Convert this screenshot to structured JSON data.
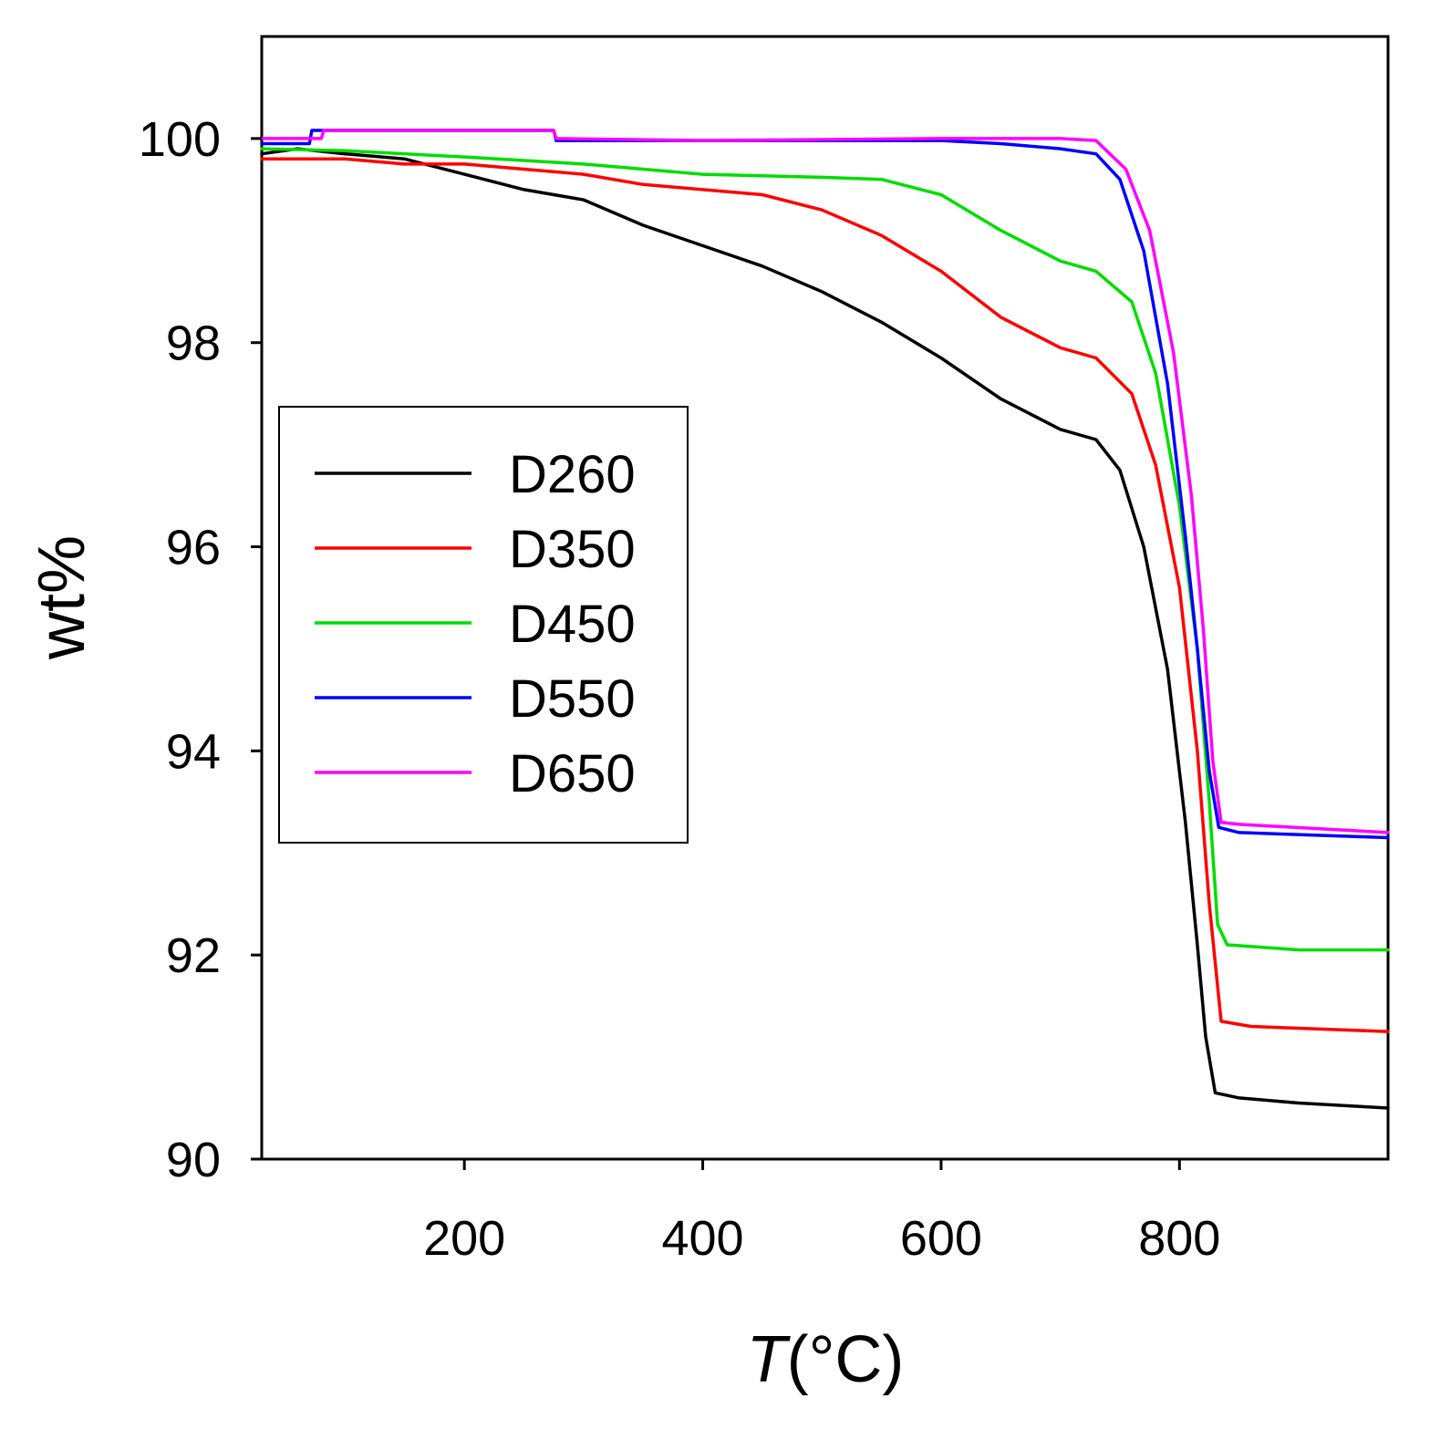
{
  "chart_data": {
    "type": "line",
    "title": "",
    "xlabel_italic": "T",
    "xlabel_unit": "(°C)",
    "ylabel": "wt%",
    "xlim": [
      30,
      975
    ],
    "ylim": [
      90,
      101
    ],
    "grid": false,
    "legend_position": "center-left",
    "x_ticks": [
      200,
      400,
      600,
      800
    ],
    "y_ticks": [
      90,
      92,
      94,
      96,
      98,
      100
    ],
    "series": [
      {
        "name": "D260",
        "color": "#000000",
        "points": [
          [
            30,
            99.85
          ],
          [
            60,
            99.9
          ],
          [
            100,
            99.85
          ],
          [
            150,
            99.8
          ],
          [
            200,
            99.65
          ],
          [
            250,
            99.5
          ],
          [
            300,
            99.4
          ],
          [
            350,
            99.15
          ],
          [
            400,
            98.95
          ],
          [
            450,
            98.75
          ],
          [
            500,
            98.5
          ],
          [
            550,
            98.2
          ],
          [
            600,
            97.85
          ],
          [
            650,
            97.45
          ],
          [
            700,
            97.15
          ],
          [
            730,
            97.05
          ],
          [
            750,
            96.75
          ],
          [
            770,
            96.0
          ],
          [
            790,
            94.8
          ],
          [
            805,
            93.3
          ],
          [
            815,
            92.1
          ],
          [
            822,
            91.2
          ],
          [
            830,
            90.65
          ],
          [
            850,
            90.6
          ],
          [
            900,
            90.55
          ],
          [
            975,
            90.5
          ]
        ]
      },
      {
        "name": "D350",
        "color": "#ff0000",
        "points": [
          [
            30,
            99.8
          ],
          [
            100,
            99.8
          ],
          [
            150,
            99.75
          ],
          [
            200,
            99.75
          ],
          [
            250,
            99.7
          ],
          [
            300,
            99.65
          ],
          [
            350,
            99.55
          ],
          [
            400,
            99.5
          ],
          [
            450,
            99.45
          ],
          [
            500,
            99.3
          ],
          [
            550,
            99.05
          ],
          [
            600,
            98.7
          ],
          [
            650,
            98.25
          ],
          [
            700,
            97.95
          ],
          [
            730,
            97.85
          ],
          [
            760,
            97.5
          ],
          [
            780,
            96.8
          ],
          [
            800,
            95.6
          ],
          [
            815,
            94.0
          ],
          [
            825,
            92.5
          ],
          [
            835,
            91.35
          ],
          [
            860,
            91.3
          ],
          [
            975,
            91.25
          ]
        ]
      },
      {
        "name": "D450",
        "color": "#00dd00",
        "points": [
          [
            30,
            99.9
          ],
          [
            100,
            99.88
          ],
          [
            200,
            99.82
          ],
          [
            300,
            99.75
          ],
          [
            400,
            99.65
          ],
          [
            500,
            99.62
          ],
          [
            550,
            99.6
          ],
          [
            600,
            99.45
          ],
          [
            650,
            99.1
          ],
          [
            700,
            98.8
          ],
          [
            730,
            98.7
          ],
          [
            760,
            98.4
          ],
          [
            780,
            97.7
          ],
          [
            800,
            96.4
          ],
          [
            815,
            95.0
          ],
          [
            825,
            93.5
          ],
          [
            832,
            92.3
          ],
          [
            840,
            92.1
          ],
          [
            900,
            92.05
          ],
          [
            975,
            92.05
          ]
        ]
      },
      {
        "name": "D550",
        "color": "#0000ff",
        "points": [
          [
            30,
            99.95
          ],
          [
            70,
            99.95
          ],
          [
            72,
            100.08
          ],
          [
            275,
            100.08
          ],
          [
            277,
            99.98
          ],
          [
            400,
            99.98
          ],
          [
            600,
            99.98
          ],
          [
            650,
            99.95
          ],
          [
            700,
            99.9
          ],
          [
            730,
            99.85
          ],
          [
            750,
            99.6
          ],
          [
            770,
            98.9
          ],
          [
            790,
            97.6
          ],
          [
            805,
            96.1
          ],
          [
            815,
            95.0
          ],
          [
            825,
            93.8
          ],
          [
            833,
            93.25
          ],
          [
            850,
            93.2
          ],
          [
            975,
            93.15
          ]
        ]
      },
      {
        "name": "D650",
        "color": "#ff00ff",
        "points": [
          [
            30,
            100.0
          ],
          [
            80,
            100.0
          ],
          [
            82,
            100.08
          ],
          [
            275,
            100.08
          ],
          [
            277,
            100.0
          ],
          [
            400,
            99.98
          ],
          [
            600,
            100.0
          ],
          [
            700,
            100.0
          ],
          [
            730,
            99.98
          ],
          [
            755,
            99.7
          ],
          [
            775,
            99.1
          ],
          [
            795,
            97.9
          ],
          [
            810,
            96.5
          ],
          [
            820,
            95.2
          ],
          [
            828,
            93.9
          ],
          [
            835,
            93.3
          ],
          [
            850,
            93.28
          ],
          [
            975,
            93.2
          ]
        ]
      }
    ]
  }
}
